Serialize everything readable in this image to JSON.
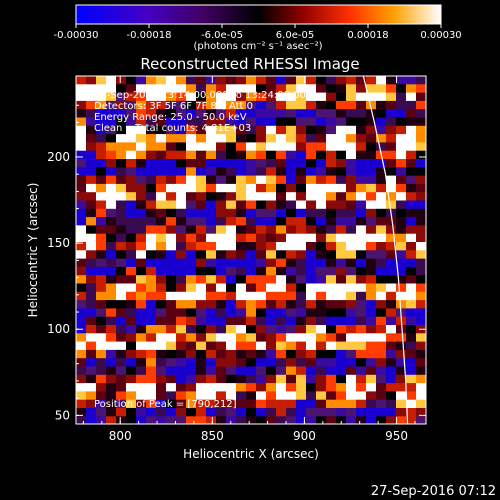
{
  "chart_data": {
    "type": "heatmap",
    "title": "Reconstructed RHESSI Image",
    "xlabel": "Heliocentric X (arcsec)",
    "ylabel": "Heliocentric Y (arcsec)",
    "xlim": [
      776,
      966
    ],
    "ylim": [
      45,
      247
    ],
    "x_ticks": [
      "800",
      "850",
      "900",
      "950"
    ],
    "y_ticks": [
      "50",
      "100",
      "150",
      "200"
    ],
    "colorbar": {
      "ticks": [
        "-0.00030",
        "-0.00018",
        "-6.0e-05",
        "6.0e-05",
        "0.00018",
        "0.00030"
      ],
      "units": "(photons cm⁻² s⁻¹ asec⁻²)",
      "range": [
        -0.0003,
        0.0003
      ]
    },
    "annotations": [
      "20-Sep-2016 13:14:00.000 to 13:24:00.000",
      "Detectors: 3F 5F 6F 7F 8F, Att 0",
      "Energy Range: 25.0 - 50.0 keV",
      "Clean    Total counts: 4.81E+03"
    ],
    "peak_label": "Position of Peak = [790,212]",
    "peak_position": [
      790,
      212
    ],
    "limb_curve": [
      [
        932,
        247
      ],
      [
        938,
        220
      ],
      [
        944,
        190
      ],
      [
        948,
        160
      ],
      [
        951,
        130
      ],
      [
        953,
        100
      ],
      [
        955,
        70
      ],
      [
        956,
        45
      ]
    ],
    "grid": false,
    "legend": "none"
  },
  "footer": {
    "timestamp": "27-Sep-2016 07:12"
  }
}
